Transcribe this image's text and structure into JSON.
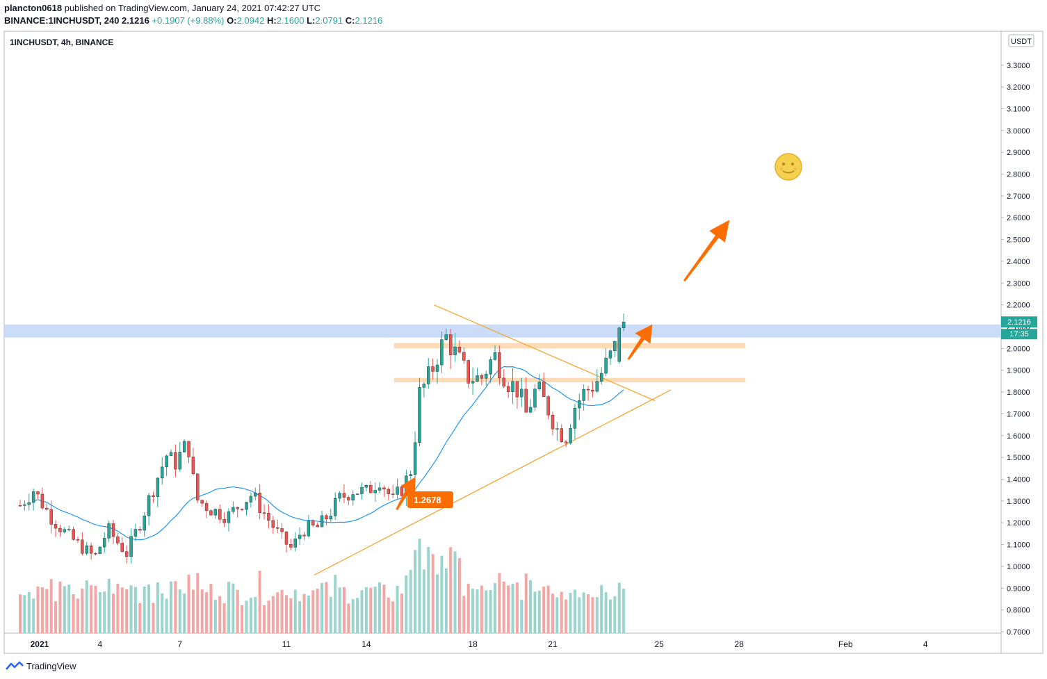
{
  "header": {
    "publisher": "plancton0618",
    "published_text": "published on TradingView.com, January 24, 2021 07:42:27 UTC",
    "symbol_line": "BINANCE:1INCHUSDT, 240",
    "last": "2.1216",
    "change": "+0.1907 (+9.88%)",
    "o_label": "O:",
    "o": "2.0942",
    "h_label": "H:",
    "h": "2.1600",
    "l_label": "L:",
    "l": "2.0791",
    "c_label": "C:",
    "c": "2.1216"
  },
  "legend_title": "1INCHUSDT, 4h, BINANCE",
  "currency": "USDT",
  "price_label": "2.1216",
  "countdown": "17:35",
  "brand": "TradingView",
  "annotation_label": "1.2678",
  "colors": {
    "up": "#26a69a",
    "down": "#ef5350",
    "up_vol": "#9bd3cd",
    "down_vol": "#f3a6a4",
    "ma": "#2196f3",
    "trend": "#f7a431",
    "arrow": "#ff6d00",
    "zone": "#fbd5a9",
    "band": "#c5d8f7"
  },
  "icons": {
    "moon": "full-moon-face-icon",
    "logo": "tradingview-logo-icon"
  },
  "chart_data": {
    "type": "candlestick",
    "ylim": [
      0.7,
      3.4
    ],
    "y_ticks": [
      "0.7000",
      "0.8000",
      "0.9000",
      "1.0000",
      "1.1000",
      "1.2000",
      "1.3000",
      "1.4000",
      "1.5000",
      "1.6000",
      "1.7000",
      "1.8000",
      "1.9000",
      "2.0000",
      "2.1000",
      "2.2000",
      "2.3000",
      "2.4000",
      "2.5000",
      "2.6000",
      "2.7000",
      "2.8000",
      "2.9000",
      "3.0000",
      "3.1000",
      "3.2000",
      "3.3000"
    ],
    "x_ticks": [
      {
        "label": "2021",
        "day": 1
      },
      {
        "label": "4",
        "day": 4
      },
      {
        "label": "7",
        "day": 7
      },
      {
        "label": "11",
        "day": 11
      },
      {
        "label": "14",
        "day": 14
      },
      {
        "label": "18",
        "day": 18
      },
      {
        "label": "21",
        "day": 21
      },
      {
        "label": "25",
        "day": 25
      },
      {
        "label": "28",
        "day": 28
      },
      {
        "label": "Feb",
        "day": 32
      },
      {
        "label": "4",
        "day": 35
      }
    ],
    "anchors": [
      [
        1.0,
        1.28
      ],
      [
        1.5,
        1.35
      ],
      [
        2.2,
        1.22
      ],
      [
        2.8,
        1.14
      ],
      [
        3.3,
        1.09
      ],
      [
        3.8,
        1.04
      ],
      [
        4.3,
        1.17
      ],
      [
        4.6,
        1.12
      ],
      [
        5.0,
        1.06
      ],
      [
        5.5,
        1.2
      ],
      [
        6.0,
        1.36
      ],
      [
        6.5,
        1.51
      ],
      [
        6.8,
        1.47
      ],
      [
        7.3,
        1.57
      ],
      [
        7.6,
        1.31
      ],
      [
        8.2,
        1.26
      ],
      [
        8.8,
        1.23
      ],
      [
        9.3,
        1.29
      ],
      [
        9.7,
        1.33
      ],
      [
        10.3,
        1.22
      ],
      [
        10.8,
        1.13
      ],
      [
        11.2,
        1.08
      ],
      [
        11.6,
        1.17
      ],
      [
        12.2,
        1.18
      ],
      [
        12.6,
        1.24
      ],
      [
        13.0,
        1.31
      ],
      [
        13.5,
        1.35
      ],
      [
        14.0,
        1.34
      ],
      [
        14.5,
        1.4
      ],
      [
        15.0,
        1.3
      ],
      [
        15.4,
        1.37
      ],
      [
        15.7,
        1.45
      ],
      [
        16.0,
        1.79
      ],
      [
        16.4,
        1.88
      ],
      [
        16.7,
        1.98
      ],
      [
        17.0,
        2.05
      ],
      [
        17.5,
        1.94
      ],
      [
        17.8,
        1.87
      ],
      [
        18.3,
        1.86
      ],
      [
        18.8,
        1.97
      ],
      [
        19.3,
        1.85
      ],
      [
        19.7,
        1.81
      ],
      [
        20.0,
        1.7
      ],
      [
        20.4,
        1.82
      ],
      [
        20.8,
        1.73
      ],
      [
        21.2,
        1.62
      ],
      [
        21.5,
        1.6
      ],
      [
        21.8,
        1.73
      ],
      [
        22.2,
        1.8
      ],
      [
        22.6,
        1.84
      ],
      [
        22.9,
        1.9
      ],
      [
        23.2,
        1.97
      ],
      [
        23.5,
        2.04
      ],
      [
        23.7,
        2.12
      ]
    ],
    "trendlines": [
      {
        "from": {
          "day": 16.5,
          "price": 2.2
        },
        "to": {
          "day": 24.8,
          "price": 1.76
        }
      },
      {
        "from": {
          "day": 12.0,
          "price": 0.96
        },
        "to": {
          "day": 25.4,
          "price": 1.81
        }
      }
    ],
    "zones": [
      {
        "from_day": 15.0,
        "to_day": 28.2,
        "low": 2.0,
        "high": 2.025
      },
      {
        "from_day": 15.0,
        "to_day": 28.2,
        "low": 1.845,
        "high": 1.865
      }
    ],
    "band": {
      "low": 2.05,
      "high": 2.11
    },
    "arrows": [
      {
        "from": {
          "day": 15.1,
          "price": 1.26
        },
        "to": {
          "day": 15.8,
          "price": 1.41
        }
      },
      {
        "from": {
          "day": 23.8,
          "price": 1.95
        },
        "to": {
          "day": 24.7,
          "price": 2.11
        }
      },
      {
        "from": {
          "day": 25.9,
          "price": 2.31
        },
        "to": {
          "day": 27.6,
          "price": 2.59
        }
      }
    ],
    "annotation": {
      "day": 15.5,
      "price": 1.2678
    }
  }
}
